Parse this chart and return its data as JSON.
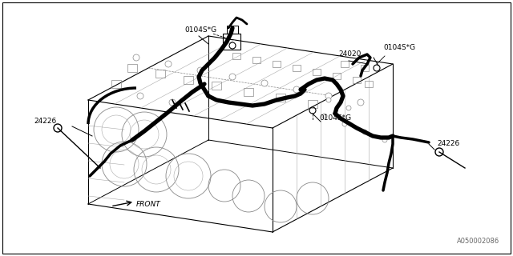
{
  "bg_color": "#ffffff",
  "border_color": "#000000",
  "fig_width": 6.4,
  "fig_height": 3.2,
  "dpi": 100,
  "labels": {
    "part_24226_left": "24226",
    "part_24226_right": "24226",
    "part_0104SG_top_left": "0104S*G",
    "part_0104SG_top_right": "0104S*G",
    "part_0104SG_center": "0104S*G",
    "part_24020": "24020",
    "front_label": "FRONT",
    "diagram_code": "A050002086"
  },
  "font_sizes": {
    "part_labels": 6.5,
    "front_label": 6.5,
    "diagram_code": 6.0
  },
  "line_color": "#000000",
  "thin_line_color": "#888888",
  "detail_line_color": "#aaaaaa"
}
